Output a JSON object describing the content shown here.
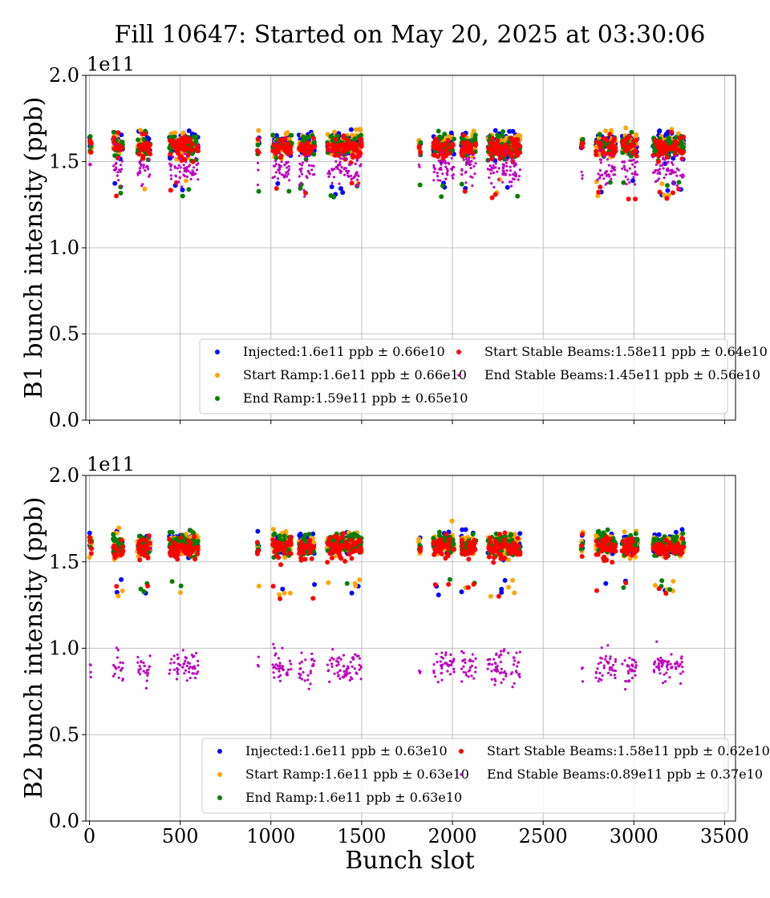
{
  "figure": {
    "title": "Fill 10647: Started on May 20, 2025 at 03:30:06",
    "xlabel": "Bunch slot"
  },
  "chart_data": [
    {
      "type": "scatter",
      "ylabel": "B1 bunch intensity (ppb)",
      "y_multiplier": "1e11",
      "xlim": [
        -20,
        3560
      ],
      "ylim": [
        0.0,
        2.0
      ],
      "xticks": [
        0,
        500,
        1000,
        1500,
        2000,
        2500,
        3000,
        3500
      ],
      "yticks": [
        0.0,
        0.5,
        1.0,
        1.5,
        2.0
      ],
      "ytick_labels": [
        "0.0",
        "0.5",
        "1.0",
        "1.5",
        "2.0"
      ],
      "grid": true,
      "legend_position": "lower-right",
      "legend_columns": 2,
      "series": [
        {
          "name": "Injected:1.6e11 ppb ± 0.66e10",
          "color": "#0000ff",
          "marker": "large",
          "mean": 1.6
        },
        {
          "name": "Start Ramp:1.6e11 ppb ± 0.66e10",
          "color": "#ffa500",
          "marker": "large",
          "mean": 1.6
        },
        {
          "name": "End Ramp:1.59e11 ppb ± 0.65e10",
          "color": "#008000",
          "marker": "large",
          "mean": 1.59
        },
        {
          "name": "Start Stable Beams:1.58e11 ppb ± 0.64e10",
          "color": "#ff0000",
          "marker": "large",
          "mean": 1.58
        },
        {
          "name": "End Stable Beams:1.45e11 ppb ± 0.56e10",
          "color": "#bf00bf",
          "marker": "small",
          "mean": 1.45
        }
      ],
      "bunch_trains": [
        [
          0,
          12
        ],
        [
          130,
          185
        ],
        [
          265,
          335
        ],
        [
          440,
          600
        ],
        [
          925,
          935
        ],
        [
          1010,
          1115
        ],
        [
          1155,
          1240
        ],
        [
          1310,
          1500
        ],
        [
          1815,
          1825
        ],
        [
          1895,
          2010
        ],
        [
          2050,
          2130
        ],
        [
          2195,
          2375
        ],
        [
          2710,
          2720
        ],
        [
          2790,
          2900
        ],
        [
          2935,
          3020
        ],
        [
          3105,
          3275
        ]
      ]
    },
    {
      "type": "scatter",
      "ylabel": "B2 bunch intensity (ppb)",
      "y_multiplier": "1e11",
      "xlim": [
        -20,
        3560
      ],
      "ylim": [
        0.0,
        2.0
      ],
      "xticks": [
        0,
        500,
        1000,
        1500,
        2000,
        2500,
        3000,
        3500
      ],
      "xtick_labels": [
        "0",
        "500",
        "1000",
        "1500",
        "2000",
        "2500",
        "3000",
        "3500"
      ],
      "yticks": [
        0.0,
        0.5,
        1.0,
        1.5,
        2.0
      ],
      "ytick_labels": [
        "0.0",
        "0.5",
        "1.0",
        "1.5",
        "2.0"
      ],
      "grid": true,
      "legend_position": "lower-right",
      "legend_columns": 2,
      "series": [
        {
          "name": "Injected:1.6e11 ppb ± 0.63e10",
          "color": "#0000ff",
          "marker": "large",
          "mean": 1.6
        },
        {
          "name": "Start Ramp:1.6e11 ppb ± 0.63e10",
          "color": "#ffa500",
          "marker": "large",
          "mean": 1.6
        },
        {
          "name": "End Ramp:1.6e11 ppb ± 0.63e10",
          "color": "#008000",
          "marker": "large",
          "mean": 1.6
        },
        {
          "name": "Start Stable Beams:1.58e11 ppb ± 0.62e10",
          "color": "#ff0000",
          "marker": "large",
          "mean": 1.58
        },
        {
          "name": "End Stable Beams:0.89e11 ppb ± 0.37e10",
          "color": "#bf00bf",
          "marker": "small",
          "mean": 0.89
        }
      ],
      "bunch_trains": [
        [
          0,
          12
        ],
        [
          130,
          185
        ],
        [
          265,
          335
        ],
        [
          440,
          600
        ],
        [
          925,
          935
        ],
        [
          1010,
          1115
        ],
        [
          1155,
          1240
        ],
        [
          1310,
          1500
        ],
        [
          1815,
          1825
        ],
        [
          1895,
          2010
        ],
        [
          2050,
          2130
        ],
        [
          2195,
          2375
        ],
        [
          2710,
          2720
        ],
        [
          2790,
          2900
        ],
        [
          2935,
          3020
        ],
        [
          3105,
          3275
        ]
      ]
    }
  ]
}
